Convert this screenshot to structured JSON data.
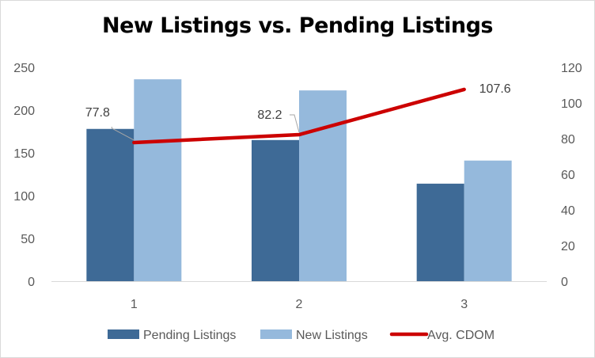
{
  "chart_data": {
    "type": "bar",
    "title": "New Listings vs. Pending Listings",
    "categories": [
      "1",
      "2",
      "3"
    ],
    "series": [
      {
        "name": "Pending Listings",
        "type": "bar",
        "axis": "left",
        "color": "#3e6a96",
        "values": [
          178,
          165,
          114
        ]
      },
      {
        "name": "New Listings",
        "type": "bar",
        "axis": "left",
        "color": "#95b9dc",
        "values": [
          236,
          223,
          141
        ]
      },
      {
        "name": "Avg. CDOM",
        "type": "line",
        "axis": "right",
        "color": "#cc0000",
        "values": [
          77.8,
          82.2,
          107.6
        ],
        "data_labels": [
          "77.8",
          "82.2",
          "107.6"
        ]
      }
    ],
    "y_left": {
      "min": 0,
      "max": 250,
      "ticks": [
        "0",
        "50",
        "100",
        "150",
        "200",
        "250"
      ]
    },
    "y_right": {
      "min": 0,
      "max": 120,
      "ticks": [
        "0",
        "20",
        "40",
        "60",
        "80",
        "100",
        "120"
      ]
    },
    "grid": false,
    "legend_position": "bottom"
  }
}
